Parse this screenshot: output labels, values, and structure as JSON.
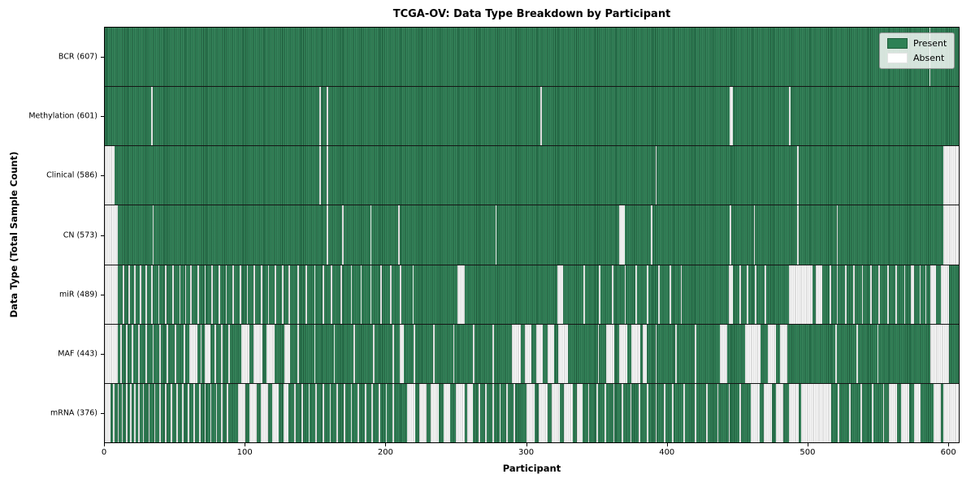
{
  "title": "TCGA-OV: Data Type Breakdown by Participant",
  "axes": {
    "x_label": "Participant",
    "y_label": "Data Type (Total Sample Count)"
  },
  "legend": {
    "items": [
      {
        "label": "Present",
        "color": "#2e8155"
      },
      {
        "label": "Absent",
        "color": "#ffffff"
      }
    ]
  },
  "colors": {
    "present": "#2e8155",
    "present_edge": "#1d5c38",
    "absent": "#fbfbfb",
    "row_divider": "#151515",
    "axis": "#000000"
  },
  "chart_data": {
    "type": "heatmap",
    "title": "TCGA-OV: Data Type Breakdown by Participant",
    "xlabel": "Participant",
    "ylabel": "Data Type (Total Sample Count)",
    "x_range": [
      0,
      608
    ],
    "x_ticks": [
      0,
      100,
      200,
      300,
      400,
      500,
      600
    ],
    "grid": "row-dividers-only",
    "legend_position": "upper-right",
    "legend_entries": [
      "Present",
      "Absent"
    ],
    "value_encoding": {
      "present": "green bar",
      "absent": "white gap"
    },
    "rows": [
      {
        "name": "BCR",
        "label": "BCR (607)",
        "present_count": 607,
        "absent_ranges": [
          [
            587,
            588
          ]
        ]
      },
      {
        "name": "Methylation",
        "label": "Methylation (601)",
        "present_count": 601,
        "absent_ranges": [
          [
            33,
            34
          ],
          [
            153,
            154
          ],
          [
            158,
            159
          ],
          [
            310,
            311
          ],
          [
            445,
            447
          ],
          [
            487,
            488
          ]
        ]
      },
      {
        "name": "Clinical",
        "label": "Clinical (586)",
        "present_count": 586,
        "absent_ranges": [
          [
            0,
            7
          ],
          [
            153,
            154
          ],
          [
            158,
            159
          ],
          [
            392,
            393
          ],
          [
            493,
            494
          ],
          [
            597,
            608
          ]
        ]
      },
      {
        "name": "CN",
        "label": "CN (573)",
        "present_count": 573,
        "absent_ranges": [
          [
            0,
            9
          ],
          [
            34,
            35
          ],
          [
            158,
            159
          ],
          [
            169,
            170
          ],
          [
            189,
            190
          ],
          [
            209,
            210
          ],
          [
            278,
            279
          ],
          [
            366,
            370
          ],
          [
            389,
            390
          ],
          [
            445,
            446
          ],
          [
            462,
            463
          ],
          [
            493,
            494
          ],
          [
            521,
            522
          ],
          [
            597,
            608
          ]
        ]
      },
      {
        "name": "miR",
        "label": "miR (489)",
        "present_count": 489,
        "absent_ranges": [
          [
            0,
            9
          ],
          [
            13,
            14
          ],
          [
            17,
            18
          ],
          [
            21,
            22
          ],
          [
            25,
            26
          ],
          [
            29,
            30
          ],
          [
            33,
            34
          ],
          [
            38,
            39
          ],
          [
            43,
            44
          ],
          [
            48,
            49
          ],
          [
            53,
            54
          ],
          [
            57,
            58
          ],
          [
            61,
            62
          ],
          [
            66,
            67
          ],
          [
            71,
            72
          ],
          [
            76,
            77
          ],
          [
            81,
            82
          ],
          [
            86,
            87
          ],
          [
            91,
            92
          ],
          [
            96,
            97
          ],
          [
            101,
            102
          ],
          [
            106,
            107
          ],
          [
            111,
            112
          ],
          [
            116,
            117
          ],
          [
            121,
            122
          ],
          [
            126,
            127
          ],
          [
            131,
            132
          ],
          [
            137,
            138
          ],
          [
            143,
            144
          ],
          [
            149,
            150
          ],
          [
            155,
            156
          ],
          [
            161,
            162
          ],
          [
            168,
            169
          ],
          [
            175,
            176
          ],
          [
            182,
            183
          ],
          [
            189,
            190
          ],
          [
            196,
            197
          ],
          [
            203,
            204
          ],
          [
            210,
            211
          ],
          [
            219,
            220
          ],
          [
            251,
            256
          ],
          [
            322,
            326
          ],
          [
            341,
            342
          ],
          [
            352,
            353
          ],
          [
            361,
            362
          ],
          [
            370,
            371
          ],
          [
            378,
            379
          ],
          [
            386,
            387
          ],
          [
            394,
            395
          ],
          [
            402,
            403
          ],
          [
            410,
            411
          ],
          [
            444,
            447
          ],
          [
            452,
            453
          ],
          [
            457,
            458
          ],
          [
            463,
            464
          ],
          [
            470,
            471
          ],
          [
            487,
            504
          ],
          [
            506,
            511
          ],
          [
            516,
            517
          ],
          [
            521,
            522
          ],
          [
            527,
            528
          ],
          [
            533,
            534
          ],
          [
            539,
            540
          ],
          [
            545,
            546
          ],
          [
            551,
            552
          ],
          [
            557,
            558
          ],
          [
            563,
            564
          ],
          [
            569,
            570
          ],
          [
            574,
            576
          ],
          [
            580,
            581
          ],
          [
            584,
            585
          ],
          [
            588,
            592
          ],
          [
            595,
            601
          ]
        ]
      },
      {
        "name": "MAF",
        "label": "MAF (443)",
        "present_count": 443,
        "absent_ranges": [
          [
            0,
            9
          ],
          [
            11,
            12
          ],
          [
            15,
            16
          ],
          [
            19,
            20
          ],
          [
            24,
            25
          ],
          [
            29,
            30
          ],
          [
            34,
            35
          ],
          [
            39,
            40
          ],
          [
            44,
            45
          ],
          [
            50,
            51
          ],
          [
            56,
            57
          ],
          [
            60,
            66
          ],
          [
            68,
            69
          ],
          [
            71,
            75
          ],
          [
            78,
            79
          ],
          [
            83,
            84
          ],
          [
            88,
            89
          ],
          [
            97,
            103
          ],
          [
            106,
            112
          ],
          [
            115,
            121
          ],
          [
            128,
            132
          ],
          [
            137,
            138
          ],
          [
            149,
            150
          ],
          [
            163,
            164
          ],
          [
            177,
            178
          ],
          [
            191,
            192
          ],
          [
            205,
            206
          ],
          [
            210,
            213
          ],
          [
            220,
            221
          ],
          [
            234,
            235
          ],
          [
            248,
            249
          ],
          [
            262,
            263
          ],
          [
            276,
            277
          ],
          [
            290,
            296
          ],
          [
            299,
            304
          ],
          [
            307,
            312
          ],
          [
            315,
            320
          ],
          [
            323,
            330
          ],
          [
            351,
            352
          ],
          [
            357,
            363
          ],
          [
            366,
            372
          ],
          [
            375,
            381
          ],
          [
            383,
            386
          ],
          [
            392,
            393
          ],
          [
            406,
            407
          ],
          [
            420,
            421
          ],
          [
            438,
            443
          ],
          [
            456,
            467
          ],
          [
            472,
            478
          ],
          [
            481,
            486
          ],
          [
            520,
            521
          ],
          [
            535,
            536
          ],
          [
            550,
            551
          ],
          [
            588,
            601
          ]
        ]
      },
      {
        "name": "mRNA",
        "label": "mRNA (376)",
        "present_count": 376,
        "absent_ranges": [
          [
            0,
            4
          ],
          [
            6,
            7
          ],
          [
            9,
            10
          ],
          [
            12,
            13
          ],
          [
            15,
            16
          ],
          [
            18,
            19
          ],
          [
            21,
            22
          ],
          [
            24,
            25
          ],
          [
            27,
            28
          ],
          [
            31,
            32
          ],
          [
            35,
            36
          ],
          [
            39,
            40
          ],
          [
            43,
            44
          ],
          [
            47,
            48
          ],
          [
            51,
            52
          ],
          [
            55,
            56
          ],
          [
            59,
            60
          ],
          [
            63,
            64
          ],
          [
            67,
            68
          ],
          [
            71,
            72
          ],
          [
            75,
            76
          ],
          [
            79,
            80
          ],
          [
            83,
            84
          ],
          [
            87,
            88
          ],
          [
            95,
            100
          ],
          [
            103,
            108
          ],
          [
            111,
            116
          ],
          [
            119,
            124
          ],
          [
            127,
            131
          ],
          [
            135,
            136
          ],
          [
            140,
            141
          ],
          [
            145,
            146
          ],
          [
            150,
            151
          ],
          [
            155,
            156
          ],
          [
            160,
            161
          ],
          [
            165,
            166
          ],
          [
            170,
            171
          ],
          [
            175,
            176
          ],
          [
            180,
            181
          ],
          [
            185,
            186
          ],
          [
            190,
            191
          ],
          [
            195,
            196
          ],
          [
            200,
            201
          ],
          [
            205,
            206
          ],
          [
            215,
            221
          ],
          [
            224,
            229
          ],
          [
            232,
            238
          ],
          [
            241,
            246
          ],
          [
            250,
            256
          ],
          [
            258,
            262
          ],
          [
            266,
            267
          ],
          [
            271,
            272
          ],
          [
            276,
            277
          ],
          [
            281,
            282
          ],
          [
            286,
            287
          ],
          [
            291,
            292
          ],
          [
            300,
            306
          ],
          [
            309,
            315
          ],
          [
            318,
            324
          ],
          [
            327,
            333
          ],
          [
            336,
            340
          ],
          [
            344,
            345
          ],
          [
            350,
            351
          ],
          [
            356,
            357
          ],
          [
            362,
            363
          ],
          [
            368,
            369
          ],
          [
            374,
            375
          ],
          [
            380,
            381
          ],
          [
            386,
            387
          ],
          [
            392,
            393
          ],
          [
            398,
            399
          ],
          [
            404,
            405
          ],
          [
            412,
            413
          ],
          [
            420,
            421
          ],
          [
            428,
            429
          ],
          [
            436,
            437
          ],
          [
            444,
            445
          ],
          [
            452,
            453
          ],
          [
            460,
            466
          ],
          [
            469,
            475
          ],
          [
            478,
            483
          ],
          [
            487,
            494
          ],
          [
            496,
            517
          ],
          [
            522,
            523
          ],
          [
            530,
            531
          ],
          [
            538,
            539
          ],
          [
            546,
            547
          ],
          [
            554,
            555
          ],
          [
            558,
            564
          ],
          [
            567,
            573
          ],
          [
            576,
            581
          ],
          [
            590,
            595
          ],
          [
            597,
            608
          ]
        ]
      }
    ]
  }
}
